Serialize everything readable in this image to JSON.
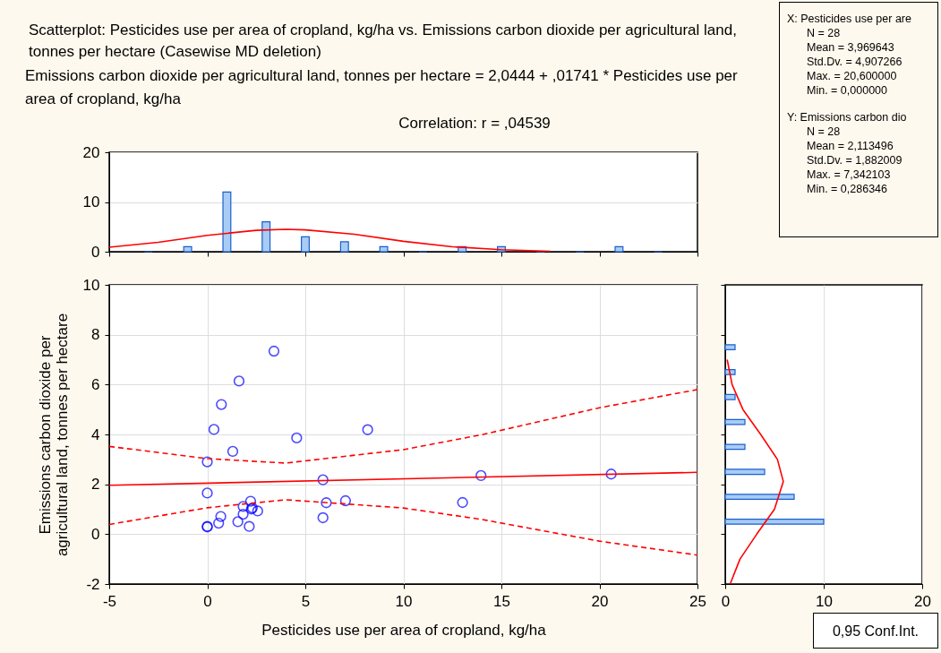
{
  "chart_data": [
    {
      "type": "histogram",
      "title": "Scatterplot: Pesticides use per area of cropland, kg/ha vs. Emissions carbon dioxide per agricultural land, tonnes per hectare (Casewise MD deletion)",
      "subtitle": "Emissions carbon dioxide per agricultural land, tonnes per hectare = 2,0444 + ,01741 * Pesticides use per area of cropland, kg/ha",
      "annotations": [
        "Correlation: r = ,04539"
      ],
      "xlim": [
        -5,
        25
      ],
      "xticks": [
        {
          "value": -5,
          "label": null
        },
        {
          "value": 0,
          "label": null
        },
        {
          "value": 5,
          "label": null
        },
        {
          "value": 10,
          "label": null
        },
        {
          "value": 15,
          "label": null
        },
        {
          "value": 20,
          "label": null
        },
        {
          "value": 25,
          "label": null
        }
      ],
      "ylim": [
        0,
        20
      ],
      "yticks": [
        0,
        10,
        20
      ],
      "tick_labels": "y",
      "grid": "y",
      "bins": [
        -4,
        -2,
        0,
        2,
        4,
        6,
        8,
        10,
        12,
        14,
        16,
        18,
        20,
        22,
        24
      ],
      "series": [
        {
          "type": "histogram",
          "color": "#1a5fd0",
          "values": [
            0,
            1,
            12,
            6,
            3,
            2,
            1,
            0,
            1,
            1,
            0,
            0,
            1,
            0
          ]
        },
        {
          "type": "line",
          "color": "#ff0000",
          "x": [
            -5,
            -2.5,
            0,
            2.5,
            4,
            5,
            7.5,
            10,
            12.5,
            15,
            17.5
          ],
          "values": [
            0.9,
            1.9,
            3.3,
            4.3,
            4.5,
            4.4,
            3.5,
            2.1,
            1.0,
            0.4,
            0.1
          ]
        }
      ]
    },
    {
      "type": "scatter",
      "xlabel": "Pesticides use per area of cropland, kg/ha",
      "ylabel": "Emissions carbon dioxide per agricultural land, tonnes per hectare",
      "annotations": [
        "0,95 Conf.Int."
      ],
      "xlim": [
        -5,
        25
      ],
      "xticks": [
        -5,
        0,
        5,
        10,
        15,
        20,
        25
      ],
      "ylim": [
        -2,
        10
      ],
      "yticks": [
        -2,
        0,
        2,
        4,
        6,
        8,
        10
      ],
      "grid": true,
      "marker": "circle",
      "series": [
        {
          "type": "scatter",
          "color": "#0000ff",
          "x": [
            3.4,
            1.62,
            0.72,
            0.34,
            4.56,
            8.18,
            1.3,
            0,
            5.9,
            13.96,
            20.6,
            0,
            2.21,
            1.83,
            2.25,
            2.3,
            2.57,
            1.83,
            0.69,
            0.58,
            1.56,
            2.14,
            0,
            0,
            5.9,
            6.07,
            7.05,
            13.02
          ],
          "values": [
            7.34,
            6.14,
            5.2,
            4.2,
            3.86,
            4.19,
            3.32,
            2.9,
            2.18,
            2.35,
            2.41,
            1.65,
            1.32,
            1.11,
            1.01,
            1.05,
            0.93,
            0.8,
            0.71,
            0.44,
            0.5,
            0.31,
            0.31,
            0.29,
            0.66,
            1.26,
            1.34,
            1.27
          ]
        },
        {
          "type": "line",
          "color": "#ff0000",
          "line_style": "solid",
          "marker": "none",
          "x": [
            -5,
            25
          ],
          "values": [
            1.96,
            2.48
          ]
        },
        {
          "type": "line",
          "color": "#ff0000",
          "line_style": "dashed",
          "marker": "none",
          "x": [
            -5,
            0,
            4,
            10,
            14,
            20,
            25
          ],
          "values": [
            3.52,
            3.03,
            2.85,
            3.39,
            3.99,
            5.07,
            5.8
          ]
        },
        {
          "type": "line",
          "color": "#ff0000",
          "line_style": "dashed",
          "marker": "none",
          "x": [
            -5,
            0,
            4,
            10,
            14,
            20,
            25
          ],
          "values": [
            0.39,
            1.06,
            1.38,
            1.05,
            0.59,
            -0.28,
            -0.84
          ]
        }
      ]
    },
    {
      "type": "histogram",
      "orientation": "horizontal",
      "xlim": [
        0,
        20
      ],
      "xticks": [
        0,
        10,
        20
      ],
      "ylim": [
        -2,
        10
      ],
      "yticks": [
        {
          "value": -2,
          "label": null
        },
        {
          "value": 0,
          "label": null
        },
        {
          "value": 2,
          "label": null
        },
        {
          "value": 4,
          "label": null
        },
        {
          "value": 6,
          "label": null
        },
        {
          "value": 8,
          "label": null
        },
        {
          "value": 10,
          "label": null
        }
      ],
      "tick_labels": "x",
      "grid": "x",
      "bins": [
        0,
        1,
        2,
        3,
        4,
        5,
        6,
        7,
        8
      ],
      "series": [
        {
          "type": "histogram",
          "color": "#1a5fd0",
          "values": [
            10,
            7,
            4,
            2,
            2,
            1,
            1,
            1
          ]
        },
        {
          "type": "line",
          "color": "#ff0000",
          "x": [
            -2,
            -1,
            0,
            1,
            2.11,
            3,
            4,
            5,
            6,
            7
          ],
          "values": [
            0.5,
            1.5,
            3.2,
            5.0,
            5.9,
            5.3,
            3.6,
            1.8,
            0.7,
            0.2
          ]
        }
      ]
    },
    {
      "type": "other",
      "annotations": [
        "X:  Pesticides use per are",
        "N = 28",
        "Mean = 3,969643",
        "Std.Dv. = 4,907266",
        "Max. = 20,600000",
        "Min. = 0,000000",
        "Y:  Emissions carbon dio",
        "N = 28",
        "Mean = 2,113496",
        "Std.Dv. = 1,882009",
        "Max. = 7,342103",
        "Min. = 0,286346"
      ]
    }
  ]
}
